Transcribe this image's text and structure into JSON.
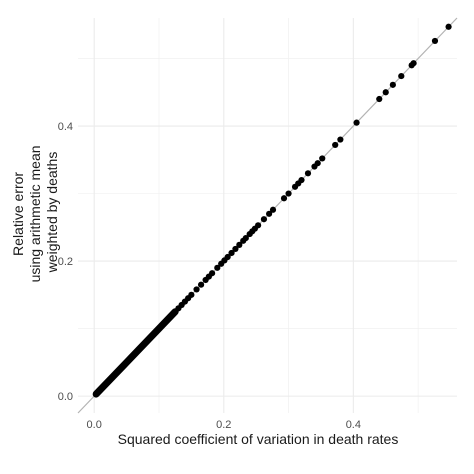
{
  "chart_data": {
    "type": "scatter",
    "title": "",
    "xlabel": "Squared coefficient of variation in death rates",
    "ylabel_lines": [
      "Relative error",
      "using arithmetic mean",
      "weighted by deaths"
    ],
    "xlim": [
      -0.025,
      0.56
    ],
    "ylim": [
      -0.025,
      0.56
    ],
    "x_ticks": [
      0.0,
      0.2,
      0.4
    ],
    "x_tick_labels": [
      "0.0",
      "0.2",
      "0.4"
    ],
    "y_ticks": [
      0.0,
      0.2,
      0.4
    ],
    "y_tick_labels": [
      "0.0",
      "0.2",
      "0.4"
    ],
    "grid": true,
    "reference_line": {
      "slope": 1,
      "intercept": 0,
      "color": "#b3b3b3"
    },
    "point_color": "#000000",
    "dense_segment": {
      "x_start": 0.003,
      "x_end": 0.125,
      "y_start": 0.003,
      "y_end": 0.125
    },
    "points": [
      [
        0.13,
        0.13
      ],
      [
        0.135,
        0.135
      ],
      [
        0.14,
        0.14
      ],
      [
        0.145,
        0.145
      ],
      [
        0.15,
        0.15
      ],
      [
        0.158,
        0.158
      ],
      [
        0.165,
        0.165
      ],
      [
        0.172,
        0.172
      ],
      [
        0.177,
        0.177
      ],
      [
        0.182,
        0.182
      ],
      [
        0.19,
        0.19
      ],
      [
        0.196,
        0.196
      ],
      [
        0.201,
        0.201
      ],
      [
        0.206,
        0.206
      ],
      [
        0.212,
        0.212
      ],
      [
        0.218,
        0.218
      ],
      [
        0.224,
        0.224
      ],
      [
        0.23,
        0.23
      ],
      [
        0.234,
        0.234
      ],
      [
        0.24,
        0.24
      ],
      [
        0.244,
        0.244
      ],
      [
        0.248,
        0.248
      ],
      [
        0.253,
        0.253
      ],
      [
        0.262,
        0.262
      ],
      [
        0.27,
        0.27
      ],
      [
        0.276,
        0.276
      ],
      [
        0.293,
        0.293
      ],
      [
        0.3,
        0.3
      ],
      [
        0.31,
        0.31
      ],
      [
        0.315,
        0.315
      ],
      [
        0.32,
        0.32
      ],
      [
        0.33,
        0.33
      ],
      [
        0.34,
        0.34
      ],
      [
        0.345,
        0.345
      ],
      [
        0.352,
        0.352
      ],
      [
        0.372,
        0.372
      ],
      [
        0.38,
        0.38
      ],
      [
        0.405,
        0.405
      ],
      [
        0.44,
        0.44
      ],
      [
        0.45,
        0.45
      ],
      [
        0.461,
        0.461
      ],
      [
        0.474,
        0.474
      ],
      [
        0.49,
        0.49
      ],
      [
        0.493,
        0.493
      ],
      [
        0.526,
        0.526
      ],
      [
        0.547,
        0.547
      ]
    ]
  }
}
